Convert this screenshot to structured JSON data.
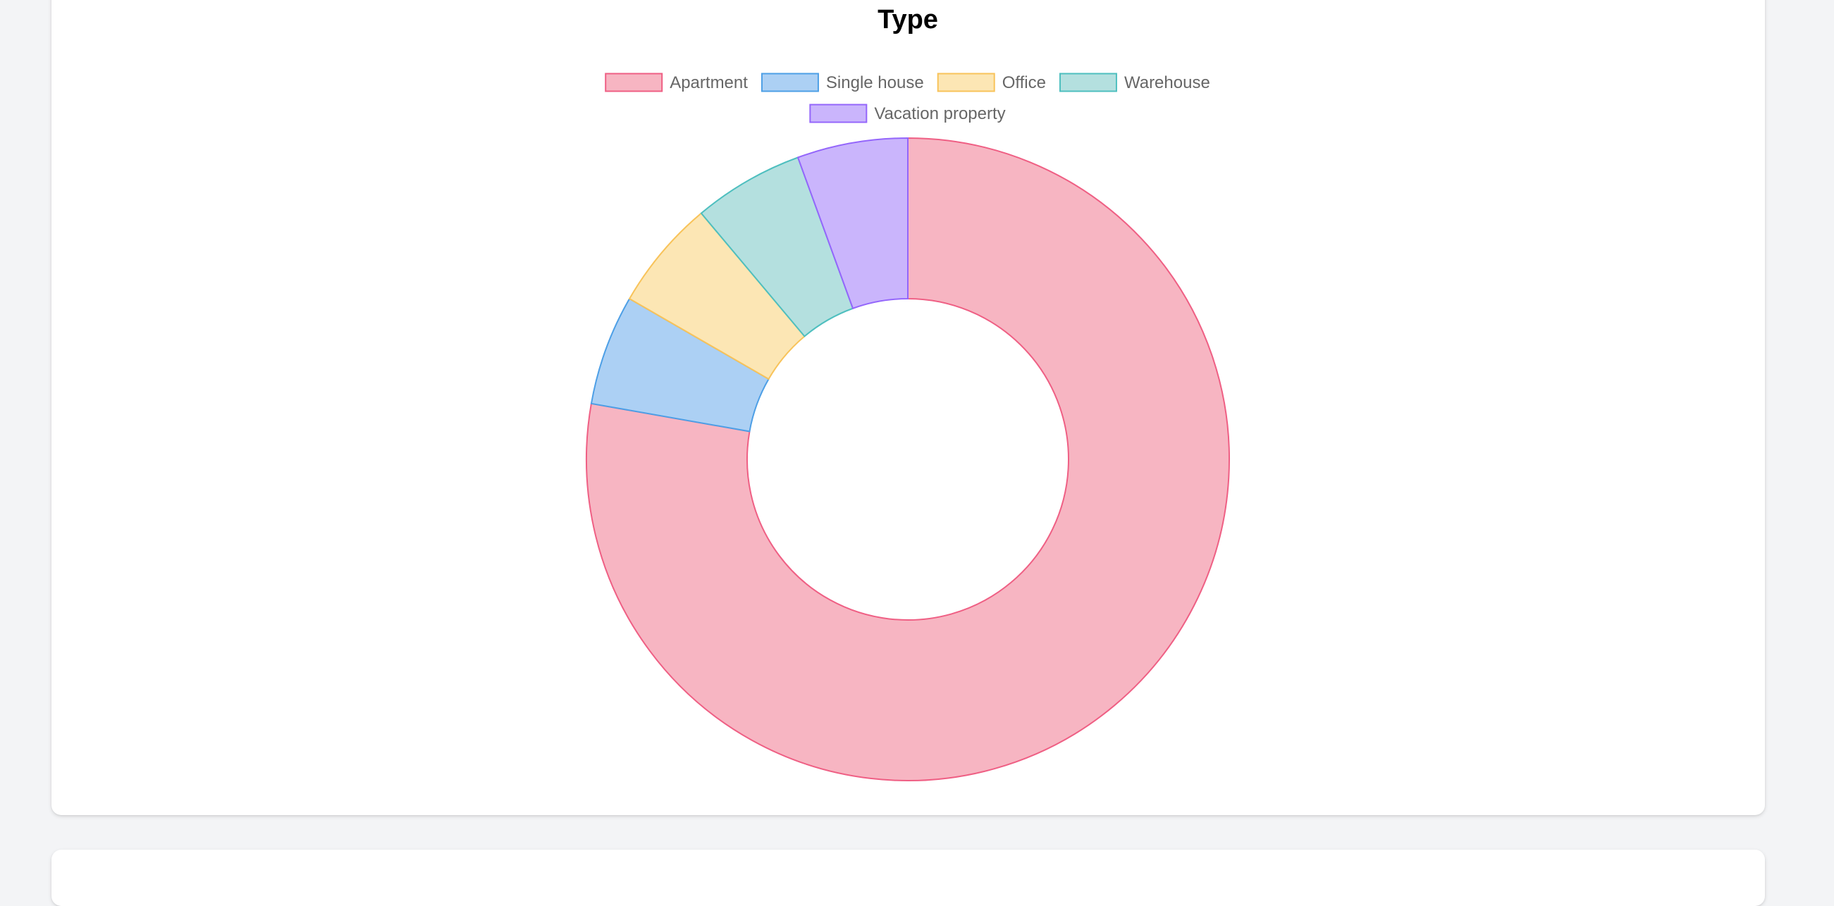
{
  "chart_data": {
    "type": "pie",
    "variant": "doughnut",
    "title": "Type",
    "legend_position": "top",
    "categories": [
      "Apartment",
      "Single house",
      "Office",
      "Warehouse",
      "Vacation property"
    ],
    "values": [
      14,
      1,
      1,
      1,
      1
    ],
    "colors": {
      "fill": [
        "#f7b5c2",
        "#acd0f4",
        "#fce6b4",
        "#b4e0df",
        "#cab5fc"
      ],
      "border": [
        "#ef5f84",
        "#4d9fe6",
        "#f8c35a",
        "#4ebfbf",
        "#9466fb"
      ]
    }
  }
}
